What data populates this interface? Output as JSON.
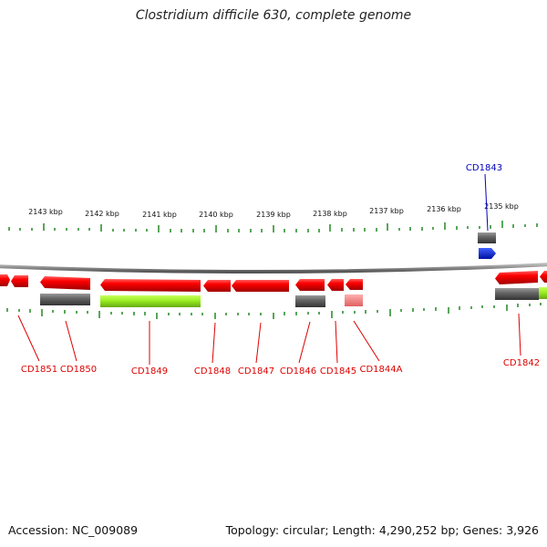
{
  "title": "Clostridium difficile 630, complete genome",
  "accession": "Accession: NC_009089",
  "summary": "Topology: circular; Length: 4,290,252 bp; Genes: 3,926",
  "scale_labels": [
    "2143 kbp",
    "2142 kbp",
    "2141 kbp",
    "2140 kbp",
    "2139 kbp",
    "2138 kbp",
    "2137 kbp",
    "2136 kbp",
    "2135 kbp"
  ],
  "genes": [
    {
      "label": "CD1851",
      "color": "#dd0000"
    },
    {
      "label": "CD1850",
      "color": "#dd0000"
    },
    {
      "label": "CD1849",
      "color": "#dd0000"
    },
    {
      "label": "CD1848",
      "color": "#dd0000"
    },
    {
      "label": "CD1847",
      "color": "#dd0000"
    },
    {
      "label": "CD1846",
      "color": "#dd0000"
    },
    {
      "label": "CD1845",
      "color": "#dd0000"
    },
    {
      "label": "CD1844A",
      "color": "#dd0000"
    },
    {
      "label": "CD1843",
      "color": "#0000bb"
    },
    {
      "label": "CD1842",
      "color": "#dd0000"
    }
  ],
  "colors": {
    "forward_cds": "#ee1111",
    "pseudo": "#f08080",
    "gene_bar": "#666666",
    "highlight": "#88dd22",
    "reverse_cds": "#0022dd",
    "ticks": "#228822",
    "backbone": "#888888"
  }
}
